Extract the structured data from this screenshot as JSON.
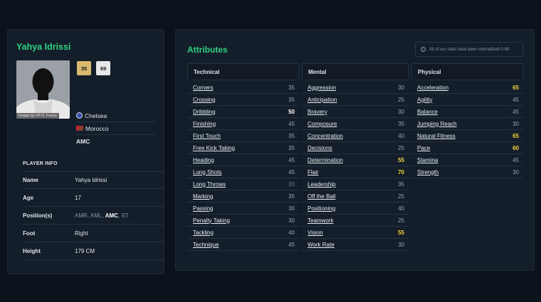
{
  "player": {
    "name": "Yahya Idrissi",
    "photo_credit": "Image by DF11 Faces",
    "current_ability": "35",
    "potential_ability": "69",
    "club": "Chelsea",
    "nation": "Morocco",
    "best_position": "AMC"
  },
  "player_info": {
    "title": "PLAYER INFO",
    "name_label": "Name",
    "name_value": "Yahya Idrissi",
    "age_label": "Age",
    "age_value": "17",
    "positions_label": "Position(s)",
    "positions": [
      "AMR, AML, ",
      "AMC",
      ", ST"
    ],
    "foot_label": "Foot",
    "foot_value": "Right",
    "height_label": "Height",
    "height_value": "179 CM"
  },
  "attributes": {
    "title": "Attributes",
    "note": "All of our stats have been normalized 0-99",
    "technical": {
      "label": "Technical",
      "items": [
        {
          "name": "Corners",
          "value": "35"
        },
        {
          "name": "Crossing",
          "value": "35"
        },
        {
          "name": "Dribbling",
          "value": "50"
        },
        {
          "name": "Finishing",
          "value": "45"
        },
        {
          "name": "First Touch",
          "value": "35"
        },
        {
          "name": "Free Kick Taking",
          "value": "35"
        },
        {
          "name": "Heading",
          "value": "45"
        },
        {
          "name": "Long Shots",
          "value": "45"
        },
        {
          "name": "Long Throws",
          "value": "20"
        },
        {
          "name": "Marking",
          "value": "35"
        },
        {
          "name": "Passing",
          "value": "30"
        },
        {
          "name": "Penalty Taking",
          "value": "30"
        },
        {
          "name": "Tackling",
          "value": "40"
        },
        {
          "name": "Technique",
          "value": "45"
        }
      ]
    },
    "mental": {
      "label": "Mental",
      "items": [
        {
          "name": "Aggression",
          "value": "30"
        },
        {
          "name": "Anticipation",
          "value": "25"
        },
        {
          "name": "Bravery",
          "value": "30"
        },
        {
          "name": "Composure",
          "value": "35"
        },
        {
          "name": "Concentration",
          "value": "40"
        },
        {
          "name": "Decisions",
          "value": "25"
        },
        {
          "name": "Determination",
          "value": "55"
        },
        {
          "name": "Flair",
          "value": "70"
        },
        {
          "name": "Leadership",
          "value": "35"
        },
        {
          "name": "Off the Ball",
          "value": "25"
        },
        {
          "name": "Positioning",
          "value": "40"
        },
        {
          "name": "Teamwork",
          "value": "25"
        },
        {
          "name": "Vision",
          "value": "55"
        },
        {
          "name": "Work Rate",
          "value": "30"
        }
      ]
    },
    "physical": {
      "label": "Physical",
      "items": [
        {
          "name": "Acceleration",
          "value": "65"
        },
        {
          "name": "Agility",
          "value": "45"
        },
        {
          "name": "Balance",
          "value": "45"
        },
        {
          "name": "Jumping Reach",
          "value": "30"
        },
        {
          "name": "Natural Fitness",
          "value": "65"
        },
        {
          "name": "Pace",
          "value": "60"
        },
        {
          "name": "Stamina",
          "value": "45"
        },
        {
          "name": "Strength",
          "value": "30"
        }
      ]
    }
  },
  "colors": {
    "accent": "#2fd17f",
    "high_value": "#f2d43a",
    "background": "#0b121c",
    "panel": "#141e2a"
  }
}
